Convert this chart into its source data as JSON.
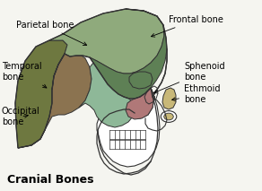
{
  "title": "Cranial Bones",
  "title_fontsize": 9,
  "title_fontweight": "bold",
  "background_color": "#f5f5f0",
  "bone_colors": {
    "parietal": "#8faa7c",
    "frontal": "#5e8055",
    "temporal": "#8b7350",
    "occipital": "#6e7840",
    "sphenoid": "#b07878",
    "ethmoid": "#c8b878",
    "temporal_inner": "#8eb898"
  },
  "labels": {
    "parietal": "Parietal bone",
    "frontal": "Frontal bone",
    "temporal": "Temporal\nbone",
    "occipital": "Occipital\nbone",
    "sphenoid": "Sphenoid\nbone",
    "ethmoid": "Ethmoid\nbone"
  }
}
